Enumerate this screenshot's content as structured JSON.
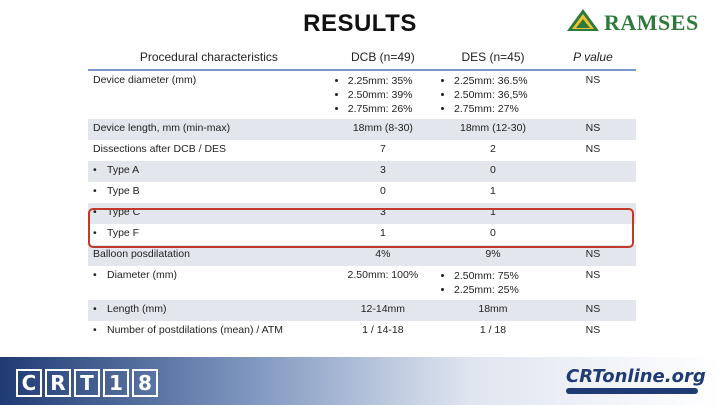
{
  "slide": {
    "title": "RESULTS",
    "logo_text": "RAMSES",
    "footer_logo_left": "CRT18",
    "footer_logo_right": "CRTonline.org"
  },
  "table": {
    "headers": [
      "Procedural characteristics",
      "DCB (n=49)",
      "DES (n=45)",
      "P value"
    ],
    "rows": [
      {
        "label": "Device diameter (mm)",
        "dcb": [
          "2.25mm: 35%",
          "2.50mm: 39%",
          "2.75mm: 26%"
        ],
        "des": [
          "2.25mm: 36.5%",
          "2.50mm: 36,5%",
          "2.75mm: 27%"
        ],
        "p": "NS"
      },
      {
        "label": "Device length, mm (min-max)",
        "dcb": "18mm (8-30)",
        "des": "18mm (12-30)",
        "p": "NS"
      },
      {
        "label": "Dissections after DCB / DES",
        "dcb": "7",
        "des": "2",
        "p": "NS"
      },
      {
        "label": "Type A",
        "dcb": "3",
        "des": "0",
        "p": ""
      },
      {
        "label": "Type B",
        "dcb": "0",
        "des": "1",
        "p": ""
      },
      {
        "label": "Type C",
        "dcb": "3",
        "des": "1",
        "p": ""
      },
      {
        "label": "Type F",
        "dcb": "1",
        "des": "0",
        "p": ""
      },
      {
        "label": "Balloon posdilatation",
        "dcb": "4%",
        "des": "9%",
        "p": "NS"
      },
      {
        "label": "Diameter (mm)",
        "dcb": "2.50mm: 100%",
        "des": [
          "2.50mm: 75%",
          "2.25mm: 25%"
        ],
        "p": "NS"
      },
      {
        "label": "Length (mm)",
        "dcb": "12-14mm",
        "des": "18mm",
        "p": "NS"
      },
      {
        "label": "Number of postdilations (mean) / ATM",
        "dcb": "1 / 14-18",
        "des": "1 / 18",
        "p": "NS"
      }
    ]
  }
}
